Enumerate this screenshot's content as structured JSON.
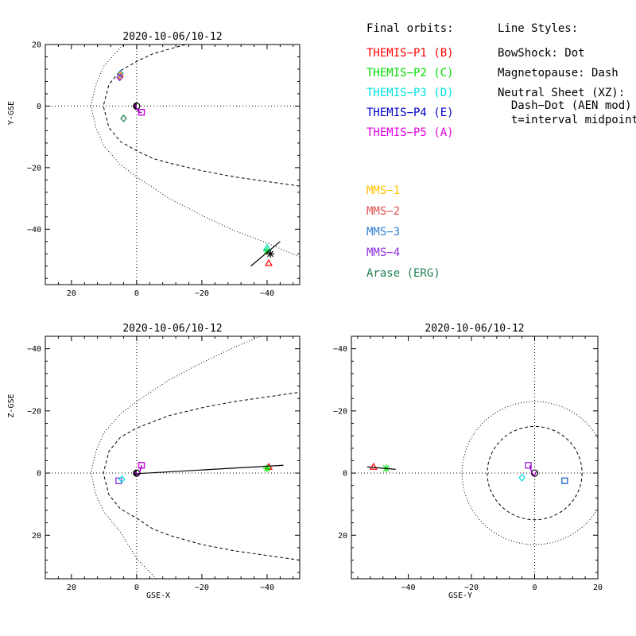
{
  "legend": {
    "orbits_title": "Final orbits:",
    "orbit_entries": [
      {
        "label": "THEMIS−P1 (B)",
        "color": "#ff0000"
      },
      {
        "label": "THEMIS−P2 (C)",
        "color": "#00e000"
      },
      {
        "label": "THEMIS−P3 (D)",
        "color": "#00e0e0"
      },
      {
        "label": "THEMIS−P4 (E)",
        "color": "#0000cc"
      },
      {
        "label": "THEMIS−P5 (A)",
        "color": "#e000e0"
      }
    ],
    "mission_entries": [
      {
        "label": "MMS−1",
        "color": "#ffc000"
      },
      {
        "label": "MMS−2",
        "color": "#e05050"
      },
      {
        "label": "MMS−3",
        "color": "#3080d0"
      },
      {
        "label": "MMS−4",
        "color": "#9030e0"
      },
      {
        "label": "Arase (ERG)",
        "color": "#208050"
      }
    ],
    "styles_title": "Line Styles:",
    "style_lines": [
      "BowShock: Dot",
      "Magnetopause: Dash",
      "Neutral Sheet (XZ):",
      "  Dash−Dot (AEN mod)",
      "  t=interval midpoint"
    ]
  },
  "chart_data": [
    {
      "type": "scatter",
      "panel": "xy",
      "title": "2020-10-06/10-12",
      "xlabel": "",
      "ylabel": "Y-GSE",
      "xlim": [
        28,
        -50
      ],
      "ylim": [
        20,
        -58
      ],
      "xticks": [
        20,
        0,
        -20,
        -40
      ],
      "yticks": [
        -40,
        -20,
        0,
        20
      ],
      "xtick_labels": [
        "20",
        "0",
        "−20",
        "−40"
      ],
      "ytick_labels": [
        "−40",
        "−20",
        "0",
        "20"
      ],
      "boundaries": [
        {
          "name": "bowshock",
          "style": "dot",
          "points": [
            [
              -50,
              -49
            ],
            [
              -40,
              -44.5
            ],
            [
              -30,
              -40.5
            ],
            [
              -20,
              -35.5
            ],
            [
              -10,
              -30
            ],
            [
              0,
              -23
            ],
            [
              5,
              -19
            ],
            [
              10,
              -13
            ],
            [
              12.5,
              -7
            ],
            [
              14,
              0
            ],
            [
              12.5,
              7
            ],
            [
              10,
              13
            ],
            [
              5,
              19
            ],
            [
              0,
              23
            ],
            [
              -8,
              28
            ]
          ]
        },
        {
          "name": "magnetopause",
          "style": "dash",
          "points": [
            [
              -50,
              -26
            ],
            [
              -40,
              -24.5
            ],
            [
              -30,
              -23
            ],
            [
              -20,
              -21
            ],
            [
              -10,
              -18.5
            ],
            [
              -5,
              -17
            ],
            [
              0,
              -14.5
            ],
            [
              5,
              -11.5
            ],
            [
              8.5,
              -7
            ],
            [
              10.2,
              0
            ],
            [
              8.5,
              7
            ],
            [
              5,
              11.5
            ],
            [
              0,
              14.5
            ],
            [
              -5,
              17
            ],
            [
              -10,
              18.5
            ],
            [
              -15,
              20
            ]
          ]
        }
      ],
      "spacecraft": [
        {
          "name": "THEMIS-P1",
          "marker": "triangle",
          "color": "#ff0000",
          "x": -40.5,
          "y": -51
        },
        {
          "name": "THEMIS-P2",
          "marker": "asterisk",
          "color": "#00e000",
          "x": -40,
          "y": -47
        },
        {
          "name": "THEMIS-P3",
          "marker": "triangle",
          "color": "#00e0e0",
          "x": -40,
          "y": -46
        },
        {
          "name": "THEMIS-P4",
          "marker": "square",
          "color": "#0000cc",
          "x": -1.5,
          "y": -2
        },
        {
          "name": "THEMIS-P5",
          "marker": "square",
          "color": "#e000e0",
          "x": -1.5,
          "y": -2
        },
        {
          "name": "MMS-1",
          "marker": "diamond",
          "color": "#ffc000",
          "x": 5,
          "y": 10
        },
        {
          "name": "MMS-2",
          "marker": "diamond",
          "color": "#e05050",
          "x": 5,
          "y": 9.5
        },
        {
          "name": "MMS-3",
          "marker": "diamond",
          "color": "#3080d0",
          "x": 5,
          "y": 10.5
        },
        {
          "name": "MMS-4",
          "marker": "diamond",
          "color": "#9030e0",
          "x": 5.2,
          "y": 9.3
        },
        {
          "name": "Arase (ERG)",
          "marker": "diamond",
          "color": "#208050",
          "x": 4,
          "y": -4
        },
        {
          "name": "Sun-line marker",
          "marker": "asterisk",
          "color": "#000000",
          "x": -41,
          "y": -48
        }
      ]
    },
    {
      "type": "scatter",
      "panel": "xz",
      "title": "2020-10-06/10-12",
      "xlabel": "GSE-X",
      "ylabel": "Z-GSE",
      "xlim": [
        28,
        -50
      ],
      "ylim": [
        -44,
        34
      ],
      "xticks": [
        20,
        0,
        -20,
        -40
      ],
      "yticks": [
        20,
        0,
        -20,
        -40
      ],
      "xtick_labels": [
        "20",
        "0",
        "−20",
        "−40"
      ],
      "ytick_labels": [
        "20",
        "0",
        "−20",
        "−40"
      ],
      "boundaries": [
        {
          "name": "bowshock",
          "style": "dot",
          "points": [
            [
              -6,
              34
            ],
            [
              0,
              27.5
            ],
            [
              5,
              19
            ],
            [
              10,
              12.5
            ],
            [
              12.5,
              7
            ],
            [
              14,
              0
            ],
            [
              12.5,
              -7
            ],
            [
              10,
              -13
            ],
            [
              5,
              -19
            ],
            [
              0,
              -23
            ],
            [
              -10,
              -30
            ],
            [
              -20,
              -35.5
            ],
            [
              -30,
              -40.5
            ],
            [
              -38,
              -44
            ]
          ]
        },
        {
          "name": "magnetopause",
          "style": "dash",
          "points": [
            [
              -50,
              28
            ],
            [
              -40,
              26.5
            ],
            [
              -30,
              25
            ],
            [
              -20,
              23
            ],
            [
              -10,
              20
            ],
            [
              -5,
              18
            ],
            [
              0,
              14.5
            ],
            [
              5,
              11.5
            ],
            [
              8.5,
              7
            ],
            [
              10.2,
              0
            ],
            [
              8.5,
              -7
            ],
            [
              5,
              -11.5
            ],
            [
              0,
              -14.5
            ],
            [
              -10,
              -18.5
            ],
            [
              -20,
              -21
            ],
            [
              -30,
              -23
            ],
            [
              -40,
              -24.5
            ],
            [
              -50,
              -26
            ]
          ]
        }
      ],
      "spacecraft": [
        {
          "name": "THEMIS-P1",
          "marker": "triangle",
          "color": "#ff0000",
          "x": -40.5,
          "y": -2
        },
        {
          "name": "THEMIS-P2",
          "marker": "asterisk",
          "color": "#00e000",
          "x": -40,
          "y": -1.5
        },
        {
          "name": "THEMIS-P4",
          "marker": "square",
          "color": "#0000cc",
          "x": -1.5,
          "y": -2.5
        },
        {
          "name": "THEMIS-P5",
          "marker": "square",
          "color": "#e000e0",
          "x": -1.5,
          "y": -2.5
        },
        {
          "name": "MMS-1",
          "marker": "square",
          "color": "#3080d0",
          "x": 5.5,
          "y": 2.5
        },
        {
          "name": "MMS-4",
          "marker": "square",
          "color": "#9030e0",
          "x": 5.5,
          "y": 2.5
        },
        {
          "name": "Arase (ERG)",
          "marker": "diamond",
          "color": "#00e0e0",
          "x": 4.5,
          "y": 2
        }
      ]
    },
    {
      "type": "scatter",
      "panel": "yz",
      "title": "2020-10-06/10-12",
      "xlabel": "GSE-Y",
      "ylabel": "",
      "xlim": [
        -58,
        20
      ],
      "ylim": [
        -44,
        34
      ],
      "xticks": [
        -40,
        -20,
        0,
        20
      ],
      "yticks": [
        20,
        0,
        -20,
        -40
      ],
      "xtick_labels": [
        "−40",
        "−20",
        "0",
        "20"
      ],
      "ytick_labels": [
        "20",
        "0",
        "−20",
        "−40"
      ],
      "boundaries": [
        {
          "name": "bowshock",
          "style": "dot",
          "circle": {
            "cx": 0,
            "cy": 0,
            "r": 23
          }
        },
        {
          "name": "magnetopause",
          "style": "dash",
          "circle": {
            "cx": 0,
            "cy": 0,
            "r": 15
          }
        }
      ],
      "spacecraft": [
        {
          "name": "THEMIS-P1",
          "marker": "triangle",
          "color": "#ff0000",
          "x": -51,
          "y": -2
        },
        {
          "name": "THEMIS-P2",
          "marker": "asterisk",
          "color": "#00e000",
          "x": -47,
          "y": -1.5
        },
        {
          "name": "THEMIS-P4",
          "marker": "square",
          "color": "#0000cc",
          "x": 9.5,
          "y": 2.5
        },
        {
          "name": "THEMIS-P5",
          "marker": "square",
          "color": "#e000e0",
          "x": -2,
          "y": -2.5
        },
        {
          "name": "MMS-1",
          "marker": "square",
          "color": "#3080d0",
          "x": 9.5,
          "y": 2.5
        },
        {
          "name": "MMS-4",
          "marker": "square",
          "color": "#9030e0",
          "x": -2,
          "y": -2.5
        },
        {
          "name": "Arase (ERG)",
          "marker": "diamond",
          "color": "#00e0e0",
          "x": -4,
          "y": 1.5
        }
      ]
    }
  ]
}
